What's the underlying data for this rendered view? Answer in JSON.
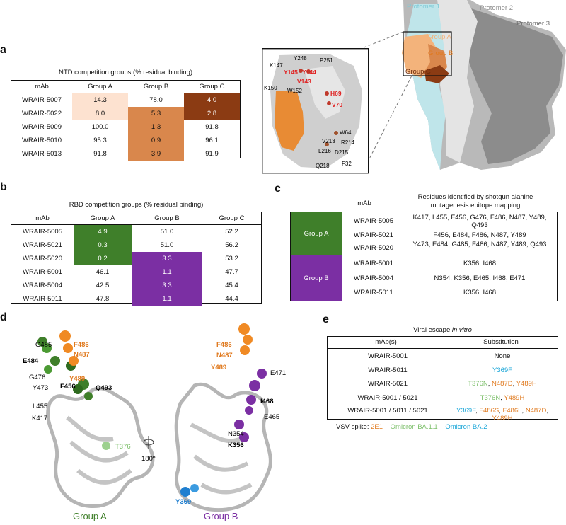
{
  "panel_letters": {
    "a": "a",
    "b": "b",
    "c": "c",
    "d": "d",
    "e": "e"
  },
  "colors": {
    "ntd_a": "#fde2d0",
    "ntd_b": "#d9874c",
    "ntd_c": "#8b3b13",
    "rbd_a": "#3f7f2a",
    "rbd_b": "#7b2fa3",
    "ntd_orange": "#e07a1f",
    "rbd_green": "#3f7f2a",
    "rbd_purple": "#7b2fa3",
    "ba11": "#7cbf6a",
    "ba2": "#1aa6d8",
    "e1": "#e07a1f"
  },
  "panel_a": {
    "title": "NTD competition groups (% residual binding)",
    "headers": [
      "mAb",
      "Group A",
      "Group B",
      "Group C"
    ],
    "rows": [
      {
        "mab": "WRAIR-5007",
        "a": "14.3",
        "b": "78.0",
        "c": "4.0"
      },
      {
        "mab": "WRAIR-5022",
        "a": "8.0",
        "b": "5.3",
        "c": "2.8"
      },
      {
        "mab": "WRAIR-5009",
        "a": "100.0",
        "b": "1.3",
        "c": "91.8"
      },
      {
        "mab": "WRAIR-5010",
        "a": "95.3",
        "b": "0.9",
        "c": "96.1"
      },
      {
        "mab": "WRAIR-5013",
        "a": "91.8",
        "b": "3.9",
        "c": "91.9"
      }
    ]
  },
  "structure_top": {
    "protomers": [
      "Protomer 1",
      "Protomer 2",
      "Protomer 3"
    ],
    "groups": [
      "Group A",
      "Group B",
      "Group C"
    ],
    "inset_residues_red": [
      "Y145",
      "Y144",
      "V143",
      "H69",
      "V70"
    ],
    "inset_residues_black": [
      "Y248",
      "P251",
      "K147",
      "K150",
      "W152",
      "V213",
      "W64",
      "R214",
      "L216",
      "D215",
      "Q218",
      "F32"
    ]
  },
  "panel_b": {
    "title": "RBD competition groups (% residual binding)",
    "headers": [
      "mAb",
      "Group A",
      "Group B",
      "Group C"
    ],
    "rows": [
      {
        "mab": "WRAIR-5005",
        "a": "4.9",
        "b": "51.0",
        "c": "52.2"
      },
      {
        "mab": "WRAIR-5021",
        "a": "0.3",
        "b": "51.0",
        "c": "56.2"
      },
      {
        "mab": "WRAIR-5020",
        "a": "0.2",
        "b": "3.3",
        "c": "53.2"
      },
      {
        "mab": "WRAIR-5001",
        "a": "46.1",
        "b": "1.1",
        "c": "47.7"
      },
      {
        "mab": "WRAIR-5004",
        "a": "42.5",
        "b": "3.3",
        "c": "45.4"
      },
      {
        "mab": "WRAIR-5011",
        "a": "47.8",
        "b": "1.1",
        "c": "44.4"
      }
    ]
  },
  "panel_c": {
    "header_mab": "mAb",
    "header_res": "Residues identified by shotgun alanine mutagenesis epitope mapping",
    "group_a": "Group A",
    "group_b": "Group B",
    "rows": [
      {
        "mab": "WRAIR-5005",
        "res": "K417, L455, F456, G476, F486, N487, Y489, Q493"
      },
      {
        "mab": "WRAIR-5021",
        "res": "F456, E484, F486, N487, Y489"
      },
      {
        "mab": "WRAIR-5020",
        "res": "Y473, E484, G485, F486, N487, Y489, Q493"
      },
      {
        "mab": "WRAIR-5001",
        "res": "K356, I468"
      },
      {
        "mab": "WRAIR-5004",
        "res": "N354, K356, E465, I468, E471"
      },
      {
        "mab": "WRAIR-5011",
        "res": "K356, I468"
      }
    ]
  },
  "panel_d": {
    "rotation": "180º",
    "group_a": "Group A",
    "group_b": "Group B",
    "left_labels": {
      "g485": "G485",
      "e484": "E484",
      "f486": "F486",
      "n487": "N487",
      "g476": "G476",
      "y489": "Y489",
      "y473": "Y473",
      "f456": "F456",
      "q493": "Q493",
      "l455": "L455",
      "k417": "K417",
      "t376": "T376"
    },
    "right_labels": {
      "f486": "F486",
      "n487": "N487",
      "y489": "Y489",
      "e471": "E471",
      "i468": "I468",
      "e465": "E465",
      "n354": "N354",
      "k356": "K356",
      "y369": "Y369"
    }
  },
  "panel_e": {
    "title_prefix": "Viral escape ",
    "title_em": "in vitro",
    "headers": [
      "mAb(s)",
      "Substitution"
    ],
    "rows": [
      {
        "mab": "WRAIR-5001",
        "subs": [
          {
            "t": "None",
            "c": "black"
          }
        ]
      },
      {
        "mab": "WRAIR-5011",
        "subs": [
          {
            "t": "Y369F",
            "c": "ba2"
          }
        ]
      },
      {
        "mab": "WRAIR-5021",
        "subs": [
          {
            "t": "T376N",
            "c": "ba11"
          },
          {
            "t": ", ",
            "c": "black"
          },
          {
            "t": "N487D",
            "c": "e1"
          },
          {
            "t": ", ",
            "c": "black"
          },
          {
            "t": "Y489H",
            "c": "e1"
          }
        ]
      },
      {
        "mab": "WRAIR-5001 / 5021",
        "subs": [
          {
            "t": "T376N",
            "c": "ba11"
          },
          {
            "t": ", ",
            "c": "black"
          },
          {
            "t": "Y489H",
            "c": "e1"
          }
        ]
      },
      {
        "mab": "WRAIR-5001 / 5011 / 5021",
        "subs": [
          {
            "t": "Y369F",
            "c": "ba2"
          },
          {
            "t": ", ",
            "c": "black"
          },
          {
            "t": "F486S",
            "c": "e1"
          },
          {
            "t": ", ",
            "c": "black"
          },
          {
            "t": "F486L",
            "c": "e1"
          },
          {
            "t": ", ",
            "c": "black"
          },
          {
            "t": "N487D",
            "c": "e1"
          },
          {
            "t": ",",
            "c": "black"
          },
          {
            "t": "Y489H",
            "c": "e1",
            "br": true
          }
        ]
      }
    ],
    "legend_label": "VSV spike: ",
    "legend": [
      {
        "t": "2E1",
        "c": "e1"
      },
      {
        "t": "Omicron BA.1.1",
        "c": "ba11"
      },
      {
        "t": "Omicron BA.2",
        "c": "ba2"
      }
    ]
  }
}
